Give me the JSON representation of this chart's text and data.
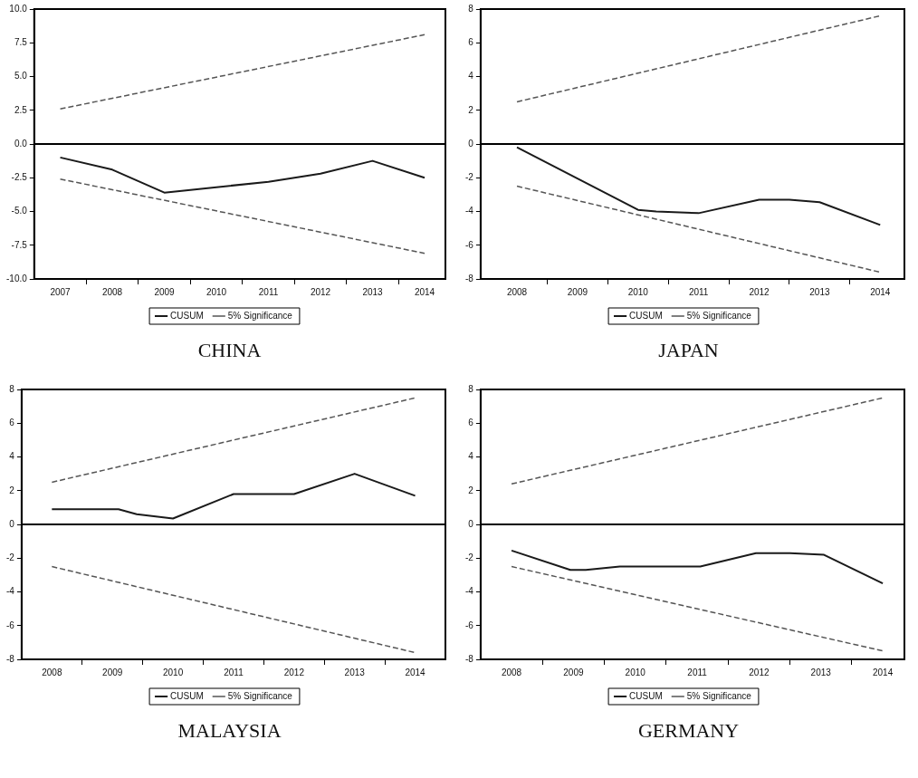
{
  "chart_data": [
    {
      "type": "line",
      "title": "CHINA",
      "legend": "bottom",
      "grid": false,
      "xlim": [
        2006.5,
        2014.4
      ],
      "ylim": [
        -10,
        10
      ],
      "xticks": [
        {
          "value": 2007,
          "label": "2007"
        },
        {
          "value": 2007.5,
          "label": null
        },
        {
          "value": 2008,
          "label": "2008"
        },
        {
          "value": 2008.5,
          "label": null
        },
        {
          "value": 2009,
          "label": "2009"
        },
        {
          "value": 2009.5,
          "label": null
        },
        {
          "value": 2010,
          "label": "2010"
        },
        {
          "value": 2010.5,
          "label": null
        },
        {
          "value": 2011,
          "label": "2011"
        },
        {
          "value": 2011.5,
          "label": null
        },
        {
          "value": 2012,
          "label": "2012"
        },
        {
          "value": 2012.5,
          "label": null
        },
        {
          "value": 2013,
          "label": "2013"
        },
        {
          "value": 2013.5,
          "label": null
        },
        {
          "value": 2014,
          "label": "2014"
        }
      ],
      "yticks": [
        {
          "value": -10,
          "label": "-10.0"
        },
        {
          "value": -7.5,
          "label": "-7.5"
        },
        {
          "value": -5,
          "label": "-5.0"
        },
        {
          "value": -2.5,
          "label": "-2.5"
        },
        {
          "value": 0,
          "label": "0.0"
        },
        {
          "value": 2.5,
          "label": "2.5"
        },
        {
          "value": 5,
          "label": "5.0"
        },
        {
          "value": 7.5,
          "label": "7.5"
        },
        {
          "value": 10,
          "label": "10.0"
        }
      ],
      "ref_lines": [
        {
          "axis": "y",
          "value": 0,
          "color": "#000000"
        }
      ],
      "series": [
        {
          "name": "CUSUM",
          "color": "#1a1a1a",
          "line_style": "solid",
          "x": [
            2007,
            2008,
            2009,
            2010,
            2011,
            2012,
            2013,
            2014
          ],
          "values": [
            -1.0,
            -1.9,
            -3.6,
            -3.2,
            -2.8,
            -2.2,
            -1.25,
            -2.5
          ]
        },
        {
          "name": "5% Significance",
          "color": "#555555",
          "line_style": "dashed",
          "x": [
            2007,
            2014
          ],
          "values": [
            2.6,
            8.1
          ]
        },
        {
          "color": "#555555",
          "line_style": "dashed",
          "x": [
            2007,
            2014
          ],
          "values": [
            -2.6,
            -8.1
          ]
        }
      ]
    },
    {
      "type": "line",
      "title": "JAPAN",
      "legend": "bottom",
      "grid": false,
      "xlim": [
        2007.4,
        2014.4
      ],
      "ylim": [
        -8,
        8
      ],
      "xticks": [
        {
          "value": 2008,
          "label": "2008"
        },
        {
          "value": 2008.5,
          "label": null
        },
        {
          "value": 2009,
          "label": "2009"
        },
        {
          "value": 2009.5,
          "label": null
        },
        {
          "value": 2010,
          "label": "2010"
        },
        {
          "value": 2010.5,
          "label": null
        },
        {
          "value": 2011,
          "label": "2011"
        },
        {
          "value": 2011.5,
          "label": null
        },
        {
          "value": 2012,
          "label": "2012"
        },
        {
          "value": 2012.5,
          "label": null
        },
        {
          "value": 2013,
          "label": "2013"
        },
        {
          "value": 2013.5,
          "label": null
        },
        {
          "value": 2014,
          "label": "2014"
        }
      ],
      "yticks": [
        -8,
        -6,
        -4,
        -2,
        0,
        2,
        4,
        6,
        8
      ],
      "ref_lines": [
        {
          "axis": "y",
          "value": 0,
          "color": "#000000"
        }
      ],
      "series": [
        {
          "name": "CUSUM",
          "color": "#1a1a1a",
          "line_style": "solid",
          "x": [
            2008,
            2010,
            2010.3,
            2011,
            2012,
            2012.5,
            2013,
            2014
          ],
          "values": [
            -0.2,
            -3.9,
            -4.0,
            -4.1,
            -3.3,
            -3.3,
            -3.45,
            -4.8
          ]
        },
        {
          "name": "5% Significance",
          "color": "#555555",
          "line_style": "dashed",
          "x": [
            2008,
            2014
          ],
          "values": [
            2.5,
            7.6
          ]
        },
        {
          "color": "#555555",
          "line_style": "dashed",
          "x": [
            2008,
            2014
          ],
          "values": [
            -2.5,
            -7.6
          ]
        }
      ]
    },
    {
      "type": "line",
      "title": "MALAYSIA",
      "legend": "bottom",
      "grid": false,
      "xlim": [
        2007.5,
        2014.5
      ],
      "ylim": [
        -8,
        8
      ],
      "xticks": [
        {
          "value": 2008,
          "label": "2008"
        },
        {
          "value": 2008.5,
          "label": null
        },
        {
          "value": 2009,
          "label": "2009"
        },
        {
          "value": 2009.5,
          "label": null
        },
        {
          "value": 2010,
          "label": "2010"
        },
        {
          "value": 2010.5,
          "label": null
        },
        {
          "value": 2011,
          "label": "2011"
        },
        {
          "value": 2011.5,
          "label": null
        },
        {
          "value": 2012,
          "label": "2012"
        },
        {
          "value": 2012.5,
          "label": null
        },
        {
          "value": 2013,
          "label": "2013"
        },
        {
          "value": 2013.5,
          "label": null
        },
        {
          "value": 2014,
          "label": "2014"
        }
      ],
      "yticks": [
        -8,
        -6,
        -4,
        -2,
        0,
        2,
        4,
        6,
        8
      ],
      "ref_lines": [
        {
          "axis": "y",
          "value": 0,
          "color": "#000000"
        }
      ],
      "series": [
        {
          "name": "CUSUM",
          "color": "#1a1a1a",
          "line_style": "solid",
          "x": [
            2008,
            2009.1,
            2009.4,
            2010,
            2011,
            2012,
            2013,
            2014
          ],
          "values": [
            0.9,
            0.9,
            0.6,
            0.35,
            1.8,
            1.8,
            3.0,
            1.7
          ]
        },
        {
          "name": "5% Significance",
          "color": "#555555",
          "line_style": "dashed",
          "x": [
            2008,
            2014
          ],
          "values": [
            2.5,
            7.5
          ]
        },
        {
          "color": "#555555",
          "line_style": "dashed",
          "x": [
            2008,
            2014
          ],
          "values": [
            -2.5,
            -7.6
          ]
        }
      ]
    },
    {
      "type": "line",
      "title": "GERMANY",
      "legend": "bottom",
      "grid": false,
      "xlim": [
        2007.5,
        2014.35
      ],
      "ylim": [
        -8,
        8
      ],
      "xticks": [
        {
          "value": 2008,
          "label": "2008"
        },
        {
          "value": 2008.5,
          "label": null
        },
        {
          "value": 2009,
          "label": "2009"
        },
        {
          "value": 2009.5,
          "label": null
        },
        {
          "value": 2010,
          "label": "2010"
        },
        {
          "value": 2010.5,
          "label": null
        },
        {
          "value": 2011,
          "label": "2011"
        },
        {
          "value": 2011.5,
          "label": null
        },
        {
          "value": 2012,
          "label": "2012"
        },
        {
          "value": 2012.5,
          "label": null
        },
        {
          "value": 2013,
          "label": "2013"
        },
        {
          "value": 2013.5,
          "label": null
        },
        {
          "value": 2014,
          "label": "2014"
        }
      ],
      "yticks": [
        -8,
        -6,
        -4,
        -2,
        0,
        2,
        4,
        6,
        8
      ],
      "ref_lines": [
        {
          "axis": "y",
          "value": 0,
          "color": "#000000"
        }
      ],
      "series": [
        {
          "name": "CUSUM",
          "color": "#1a1a1a",
          "line_style": "solid",
          "x": [
            2008,
            2008.95,
            2009.2,
            2009.75,
            2011.05,
            2011.95,
            2012.5,
            2013.05,
            2014
          ],
          "values": [
            -1.55,
            -2.7,
            -2.7,
            -2.5,
            -2.5,
            -1.7,
            -1.7,
            -1.8,
            -3.5
          ]
        },
        {
          "name": "5% Significance",
          "color": "#555555",
          "line_style": "dashed",
          "x": [
            2008,
            2014
          ],
          "values": [
            2.4,
            7.5
          ]
        },
        {
          "color": "#555555",
          "line_style": "dashed",
          "x": [
            2008,
            2014
          ],
          "values": [
            -2.5,
            -7.5
          ]
        }
      ]
    }
  ]
}
